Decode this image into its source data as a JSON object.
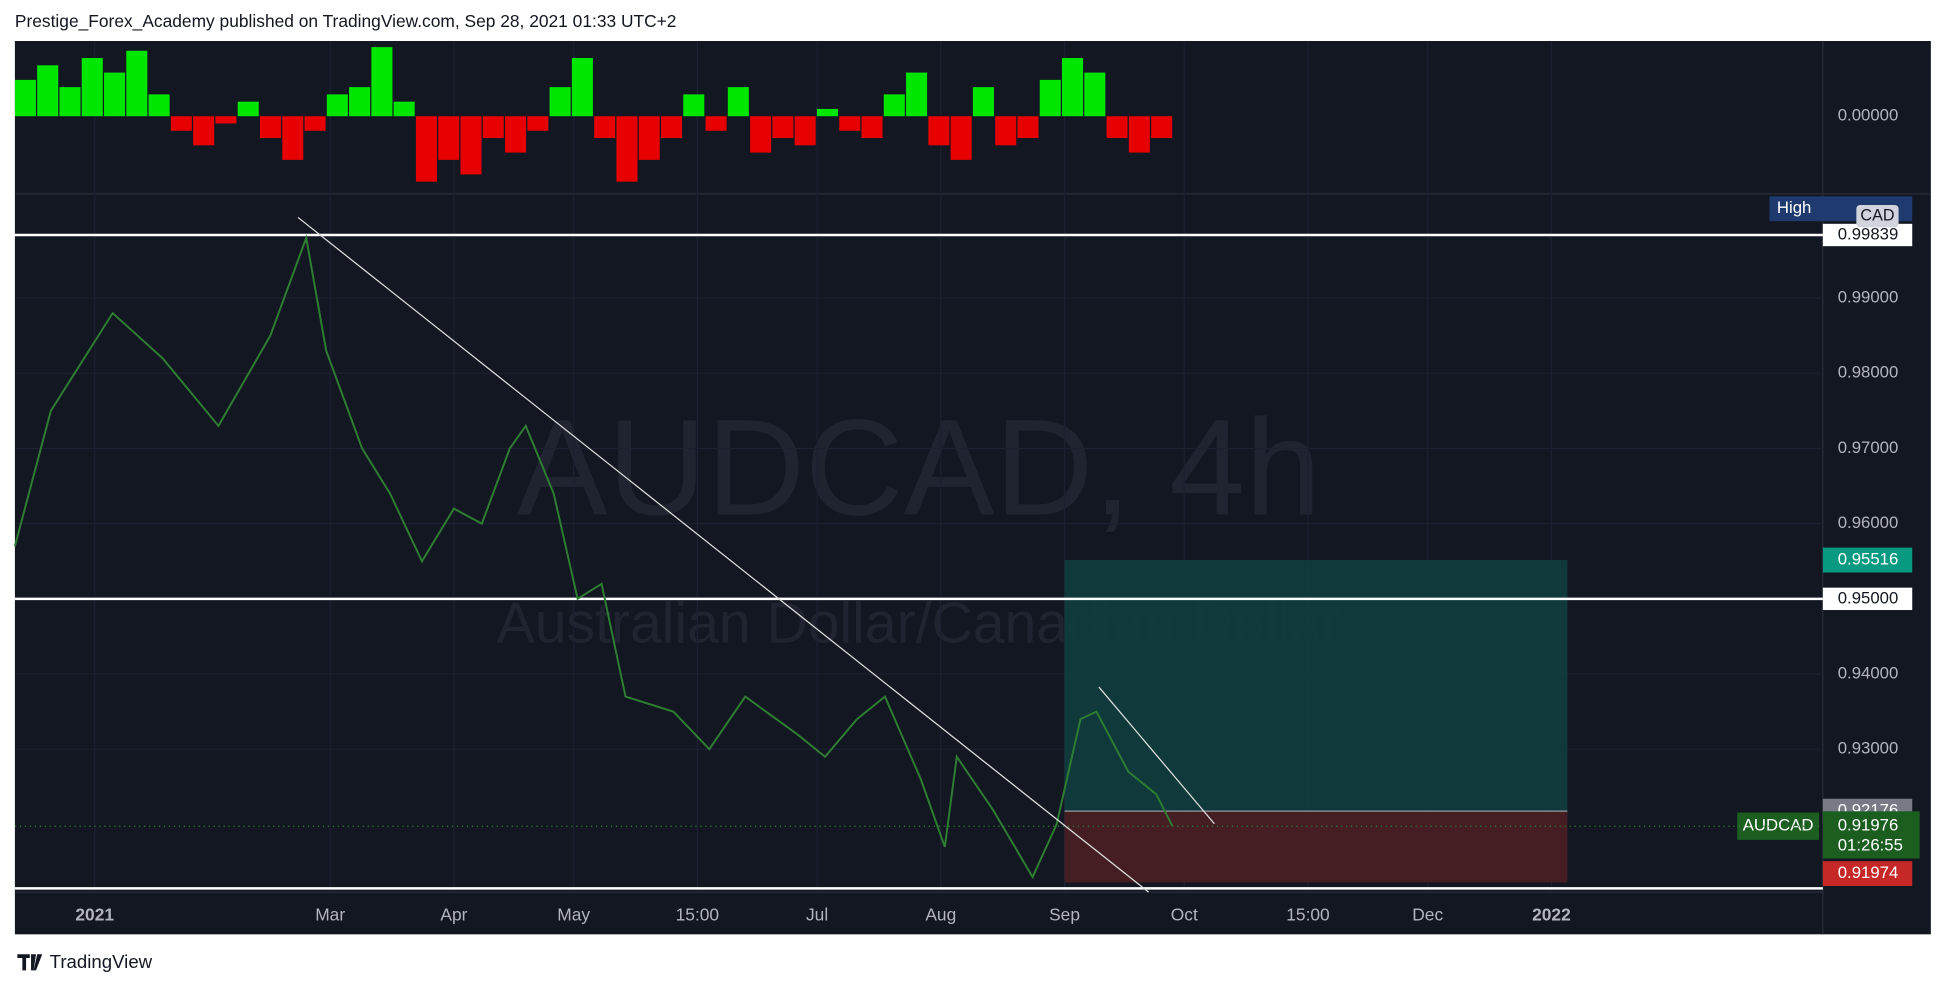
{
  "header": {
    "text": "Prestige_Forex_Academy published on TradingView.com, Sep 28, 2021 01:33 UTC+2"
  },
  "footer": {
    "brand": "TradingView"
  },
  "watermark": {
    "symbol": "AUDCAD, 4h",
    "description": "Australian Dollar/Canadian Dollar"
  },
  "chart_data": {
    "type": "line",
    "x": [
      -20,
      -11,
      4.5,
      17,
      31,
      44,
      53,
      58,
      67,
      74,
      82,
      90,
      97,
      104,
      108,
      115,
      121,
      127,
      133,
      145,
      154,
      163,
      176,
      183,
      191,
      198,
      207,
      213,
      216,
      225,
      235,
      241,
      247,
      251,
      259,
      266,
      270
    ],
    "series": [
      {
        "name": "AUDCAD",
        "color": "#2e7d32",
        "values": [
          0.957,
          0.975,
          0.988,
          0.982,
          0.973,
          0.985,
          0.998,
          0.983,
          0.97,
          0.964,
          0.955,
          0.962,
          0.96,
          0.97,
          0.973,
          0.964,
          0.95,
          0.952,
          0.937,
          0.935,
          0.93,
          0.937,
          0.932,
          0.929,
          0.934,
          0.937,
          0.926,
          0.917,
          0.929,
          0.922,
          0.913,
          0.92,
          0.934,
          0.935,
          0.927,
          0.924,
          0.9198
        ]
      }
    ],
    "xlim": [
      -20,
      433
    ],
    "xticks": [
      {
        "value": 0,
        "label": "2021"
      },
      {
        "value": 59,
        "label": "Mar"
      },
      {
        "value": 90,
        "label": "Apr"
      },
      {
        "value": 120,
        "label": "May"
      },
      {
        "value": 151,
        "label": "15:00"
      },
      {
        "value": 181,
        "label": "Jul"
      },
      {
        "value": 212,
        "label": "Aug"
      },
      {
        "value": 243,
        "label": "Sep"
      },
      {
        "value": 273,
        "label": "Oct"
      },
      {
        "value": 304,
        "label": "15:00"
      },
      {
        "value": 334,
        "label": "Dec"
      },
      {
        "value": 365,
        "label": "2022"
      }
    ],
    "ylim": [
      0.911,
      1.0037
    ],
    "yticks": [
      {
        "value": 0.93,
        "label": "0.93000"
      },
      {
        "value": 0.94,
        "label": "0.94000"
      },
      {
        "value": 0.96,
        "label": "0.96000"
      },
      {
        "value": 0.97,
        "label": "0.97000"
      },
      {
        "value": 0.98,
        "label": "0.98000"
      },
      {
        "value": 0.99,
        "label": "0.99000"
      }
    ],
    "grid": true,
    "levels": [
      {
        "value": 0.99839,
        "label": "0.99839"
      },
      {
        "value": 0.95,
        "label": "0.95000"
      },
      {
        "value": 0.9115
      }
    ],
    "position": {
      "x_range": [
        243,
        369
      ],
      "target": {
        "value": 0.95516,
        "label": "0.95516",
        "color": "#0f3d3e"
      },
      "entry": {
        "value": 0.92176,
        "label": "0.92176"
      },
      "stop": {
        "value": 0.9123,
        "color": "#4a1f24"
      }
    },
    "last_price": {
      "name": "AUDCAD",
      "value": 0.91976,
      "label": "0.91976",
      "countdown": "01:26:55",
      "color": "#1b5e20"
    },
    "bid_price": {
      "value": 0.91974,
      "label": "0.91974",
      "color": "#c62828"
    },
    "high_tag": "High",
    "currency_tag": "CAD",
    "oscillator": {
      "positive_color": "#00e600",
      "negative_color": "#e60000",
      "ylim": [
        -1.05,
        1
      ],
      "yticks": [
        {
          "value": 0,
          "label": "0.00000"
        }
      ],
      "values": [
        0.5,
        0.7,
        0.4,
        0.8,
        0.6,
        0.9,
        0.3,
        -0.2,
        -0.4,
        -0.1,
        0.2,
        -0.3,
        -0.6,
        -0.2,
        0.3,
        0.4,
        0.95,
        0.2,
        -0.9,
        -0.6,
        -0.8,
        -0.3,
        -0.5,
        -0.2,
        0.4,
        0.8,
        -0.3,
        -0.9,
        -0.6,
        -0.3,
        0.3,
        -0.2,
        0.4,
        -0.5,
        -0.3,
        -0.4,
        0.1,
        -0.2,
        -0.3,
        0.3,
        0.6,
        -0.4,
        -0.6,
        0.4,
        -0.4,
        -0.3,
        0.5,
        0.8,
        0.6,
        -0.3,
        -0.5,
        -0.3
      ]
    }
  }
}
